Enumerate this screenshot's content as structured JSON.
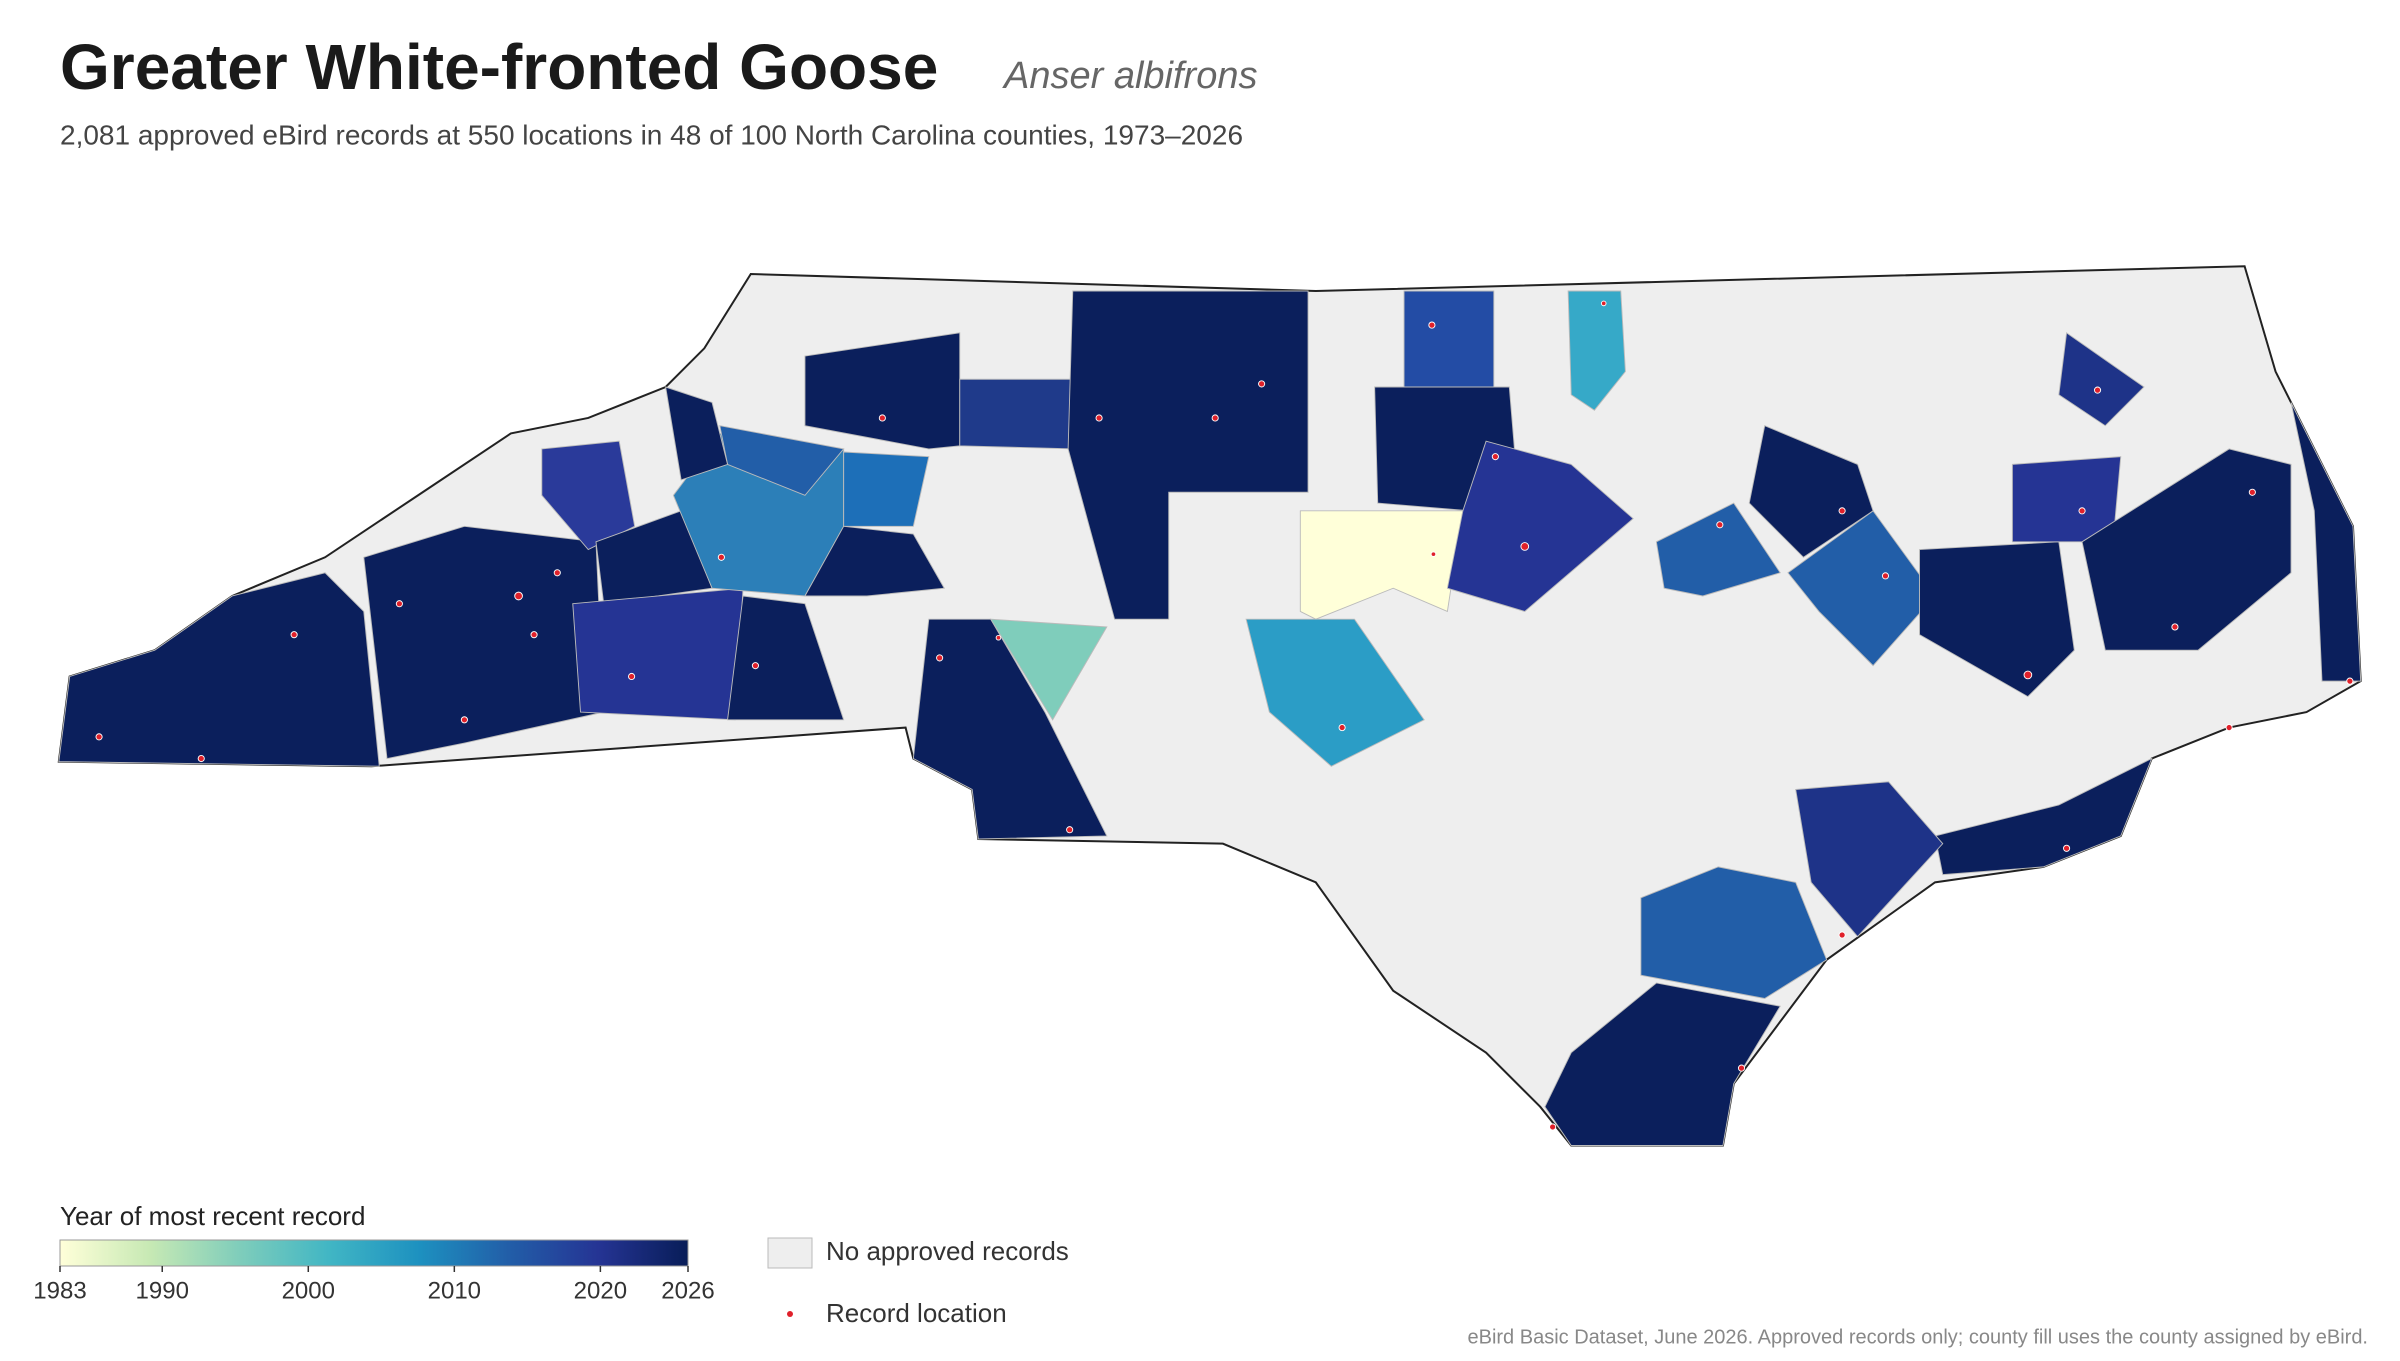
{
  "header": {
    "title": "Greater White-fronted Goose",
    "species": "Anser albifrons",
    "subtitle": "2,081 approved eBird records at 550 locations in 48 of 100 North Carolina counties, 1973–2026"
  },
  "legend": {
    "title": "Year of most recent record",
    "scale": {
      "range": [
        1983,
        2026
      ],
      "ticks": [
        1983,
        1990,
        2000,
        2010,
        2020,
        2026
      ],
      "colors": [
        "#ffffd9",
        "#c7e9b4",
        "#7fcdbb",
        "#41b6c4",
        "#1d91c0",
        "#225ea8",
        "#253494",
        "#081d58"
      ]
    },
    "no_data_label": "No approved records",
    "point_label": "Record location"
  },
  "footer": {
    "source": "eBird Basic Dataset, June 2026. Approved records only; county fill uses the county assigned by eBird."
  }
}
